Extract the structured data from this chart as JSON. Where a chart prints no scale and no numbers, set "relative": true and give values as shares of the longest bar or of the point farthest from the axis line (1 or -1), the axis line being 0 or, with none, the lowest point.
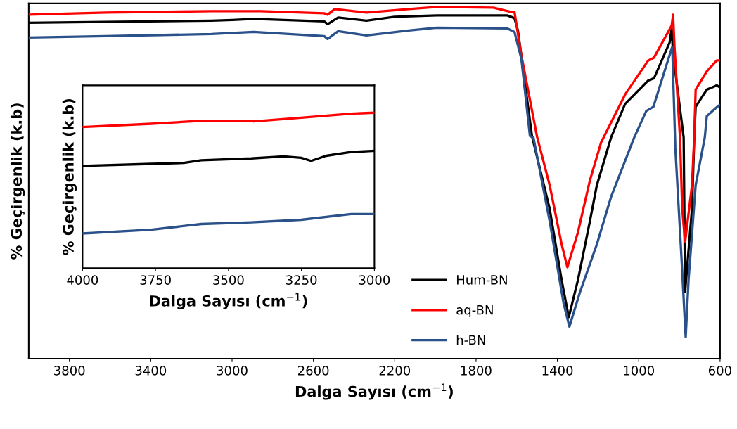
{
  "chart_data": [
    {
      "type": "line",
      "relative": true,
      "xlabel": "Dalga Sayısı (cm$^{−1}$)",
      "ylabel": "% Geçirgenlik (k.b)",
      "xlim": [
        4000,
        600
      ],
      "xticks": [
        3800,
        3400,
        3000,
        2600,
        2200,
        1800,
        1400,
        1000,
        600
      ],
      "tick_labels": "x",
      "grid": false,
      "legend": "bottom right",
      "marker": "none",
      "line_style": "solid",
      "series": [
        {
          "name": "Hum-BN",
          "color": "#000000",
          "x": [
            4000,
            3102,
            2998,
            2894,
            2547,
            2530,
            2478,
            2339,
            2201,
            1993,
            1646,
            1611,
            1594,
            1525,
            1438,
            1379,
            1344,
            1299,
            1240,
            1206,
            1136,
            1067,
            953,
            925,
            848,
            838,
            831,
            779,
            772,
            738,
            727,
            720,
            665,
            616,
            600
          ],
          "values": [
            0.955,
            0.961,
            0.963,
            0.966,
            0.959,
            0.951,
            0.97,
            0.961,
            0.972,
            0.976,
            0.976,
            0.968,
            0.933,
            0.633,
            0.426,
            0.223,
            0.118,
            0.223,
            0.391,
            0.493,
            0.629,
            0.724,
            0.791,
            0.797,
            0.899,
            0.939,
            0.866,
            0.629,
            0.189,
            0.426,
            0.629,
            0.716,
            0.765,
            0.777,
            0.771
          ]
        },
        {
          "name": "aq-BN",
          "color": "#ff0000",
          "x": [
            4000,
            3622,
            3102,
            2859,
            2547,
            2530,
            2495,
            2339,
            2131,
            1993,
            1715,
            1629,
            1611,
            1577,
            1500,
            1438,
            1379,
            1351,
            1299,
            1240,
            1185,
            1067,
            953,
            925,
            838,
            831,
            824,
            797,
            786,
            772,
            738,
            727,
            720,
            665,
            616,
            600
          ],
          "values": [
            0.978,
            0.984,
            0.988,
            0.988,
            0.982,
            0.978,
            0.994,
            0.984,
            0.994,
            1.0,
            0.998,
            0.986,
            0.986,
            0.862,
            0.631,
            0.493,
            0.325,
            0.26,
            0.359,
            0.507,
            0.615,
            0.751,
            0.848,
            0.856,
            0.947,
            0.978,
            0.886,
            0.629,
            0.426,
            0.331,
            0.493,
            0.629,
            0.765,
            0.817,
            0.848,
            0.848
          ]
        },
        {
          "name": "h-BN",
          "color": "#2a5189",
          "x": [
            4000,
            3622,
            3102,
            2894,
            2547,
            2530,
            2478,
            2339,
            2131,
            1993,
            1646,
            1611,
            1577,
            1535,
            1518,
            1438,
            1369,
            1341,
            1289,
            1206,
            1136,
            1022,
            963,
            928,
            838,
            835,
            820,
            790,
            769,
            755,
            720,
            675,
            665,
            606,
            600
          ],
          "values": [
            0.913,
            0.917,
            0.923,
            0.929,
            0.917,
            0.909,
            0.931,
            0.919,
            0.933,
            0.941,
            0.939,
            0.929,
            0.852,
            0.633,
            0.629,
            0.391,
            0.156,
            0.091,
            0.189,
            0.325,
            0.46,
            0.629,
            0.704,
            0.716,
            0.882,
            0.886,
            0.6,
            0.29,
            0.061,
            0.223,
            0.493,
            0.629,
            0.69,
            0.72,
            0.72
          ]
        }
      ]
    },
    {
      "type": "line",
      "relative": true,
      "xlabel": "Dalga Sayısı (cm$^{−1}$)",
      "ylabel": "% Geçirgenlik (k.b)",
      "xlim": [
        4000,
        3000
      ],
      "xticks": [
        4000,
        3750,
        3500,
        3250,
        3000
      ],
      "tick_labels": "x",
      "grid": false,
      "marker": "none",
      "line_style": "solid",
      "series": [
        {
          "color": "#ff0000",
          "x": [
            4000,
            3765,
            3593,
            3422,
            3414,
            3251,
            3080,
            3000
          ],
          "values": [
            0.908,
            0.929,
            0.948,
            0.948,
            0.944,
            0.968,
            0.994,
            1.0
          ]
        },
        {
          "color": "#000000",
          "x": [
            4000,
            3765,
            3653,
            3593,
            3422,
            3311,
            3251,
            3217,
            3165,
            3080,
            3000
          ],
          "values": [
            0.658,
            0.671,
            0.677,
            0.694,
            0.706,
            0.719,
            0.71,
            0.69,
            0.723,
            0.747,
            0.755
          ]
        },
        {
          "color": "#2a5189",
          "x": [
            4000,
            3765,
            3593,
            3422,
            3251,
            3080,
            3000
          ],
          "values": [
            0.223,
            0.247,
            0.284,
            0.295,
            0.311,
            0.348,
            0.348
          ]
        }
      ]
    }
  ]
}
